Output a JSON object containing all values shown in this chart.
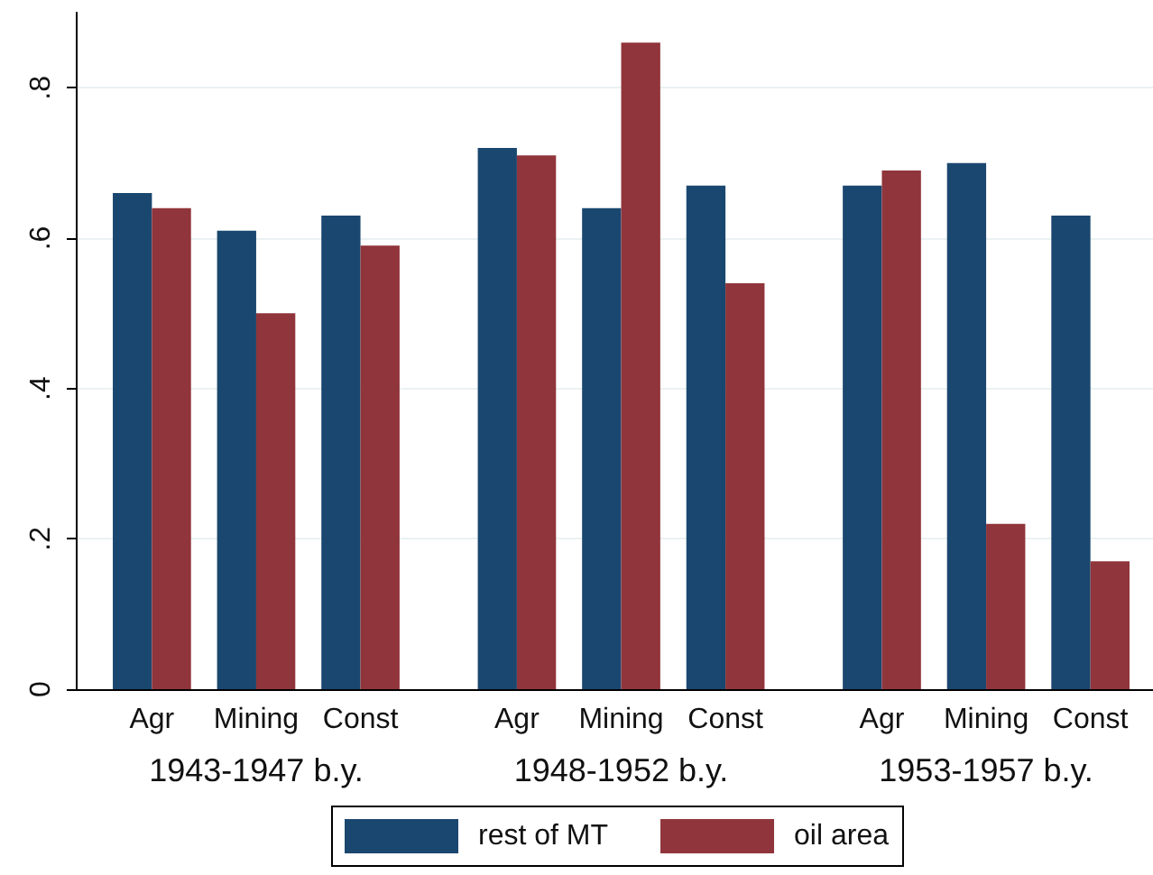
{
  "chart_data": {
    "type": "bar",
    "categories": [
      "Agr",
      "Mining",
      "Const",
      "Agr",
      "Mining",
      "Const",
      "Agr",
      "Mining",
      "Const"
    ],
    "annotations": [
      "1943-1947 b.y.",
      "1948-1952 b.y.",
      "1953-1957 b.y."
    ],
    "series": [
      {
        "name": "rest of MT",
        "color": "#1a476f",
        "values": [
          0.66,
          0.61,
          0.63,
          0.72,
          0.64,
          0.67,
          0.67,
          0.7,
          0.63
        ]
      },
      {
        "name": "oil area",
        "color": "#90353b",
        "values": [
          0.64,
          0.5,
          0.59,
          0.71,
          0.86,
          0.54,
          0.69,
          0.22,
          0.17
        ]
      }
    ],
    "ylim": [
      0,
      0.9
    ],
    "yticks": [
      0,
      {
        "value": 0.2,
        "label": ".2"
      },
      {
        "value": 0.4,
        "label": ".4"
      },
      {
        "value": 0.6,
        "label": ".6"
      },
      {
        "value": 0.8,
        "label": ".8"
      }
    ],
    "grid": "y",
    "legend": "bottom"
  }
}
